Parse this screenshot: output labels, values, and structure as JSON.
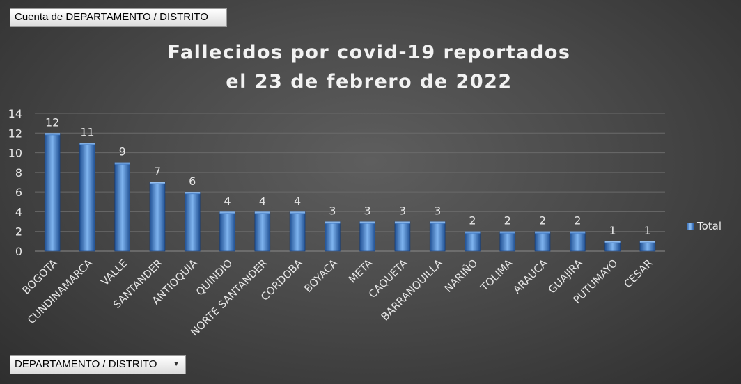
{
  "pivot": {
    "value_field": "Cuenta de DEPARTAMENTO / DISTRITO",
    "row_field": "DEPARTAMENTO / DISTRITO"
  },
  "chart_data": {
    "type": "bar",
    "title_line1": "Fallecidos por covid-19 reportados",
    "title_line2": "el 23 de febrero de 2022",
    "categories": [
      "BOGOTA",
      "CUNDINAMARCA",
      "VALLE",
      "SANTANDER",
      "ANTIOQUIA",
      "QUINDIO",
      "NORTE SANTANDER",
      "CORDOBA",
      "BOYACA",
      "META",
      "CAQUETA",
      "BARRANQUILLA",
      "NARIÑO",
      "TOLIMA",
      "ARAUCA",
      "GUAJIRA",
      "PUTUMAYO",
      "CESAR"
    ],
    "series": [
      {
        "name": "Total",
        "values": [
          12,
          11,
          9,
          7,
          6,
          4,
          4,
          4,
          3,
          3,
          3,
          3,
          2,
          2,
          2,
          2,
          1,
          1
        ]
      }
    ],
    "y_ticks": [
      0,
      2,
      4,
      6,
      8,
      10,
      12,
      14
    ],
    "ylim": [
      0,
      14
    ],
    "grid": true,
    "data_labels": true,
    "legend_position": "right",
    "bar_color": "#4a86d4"
  }
}
